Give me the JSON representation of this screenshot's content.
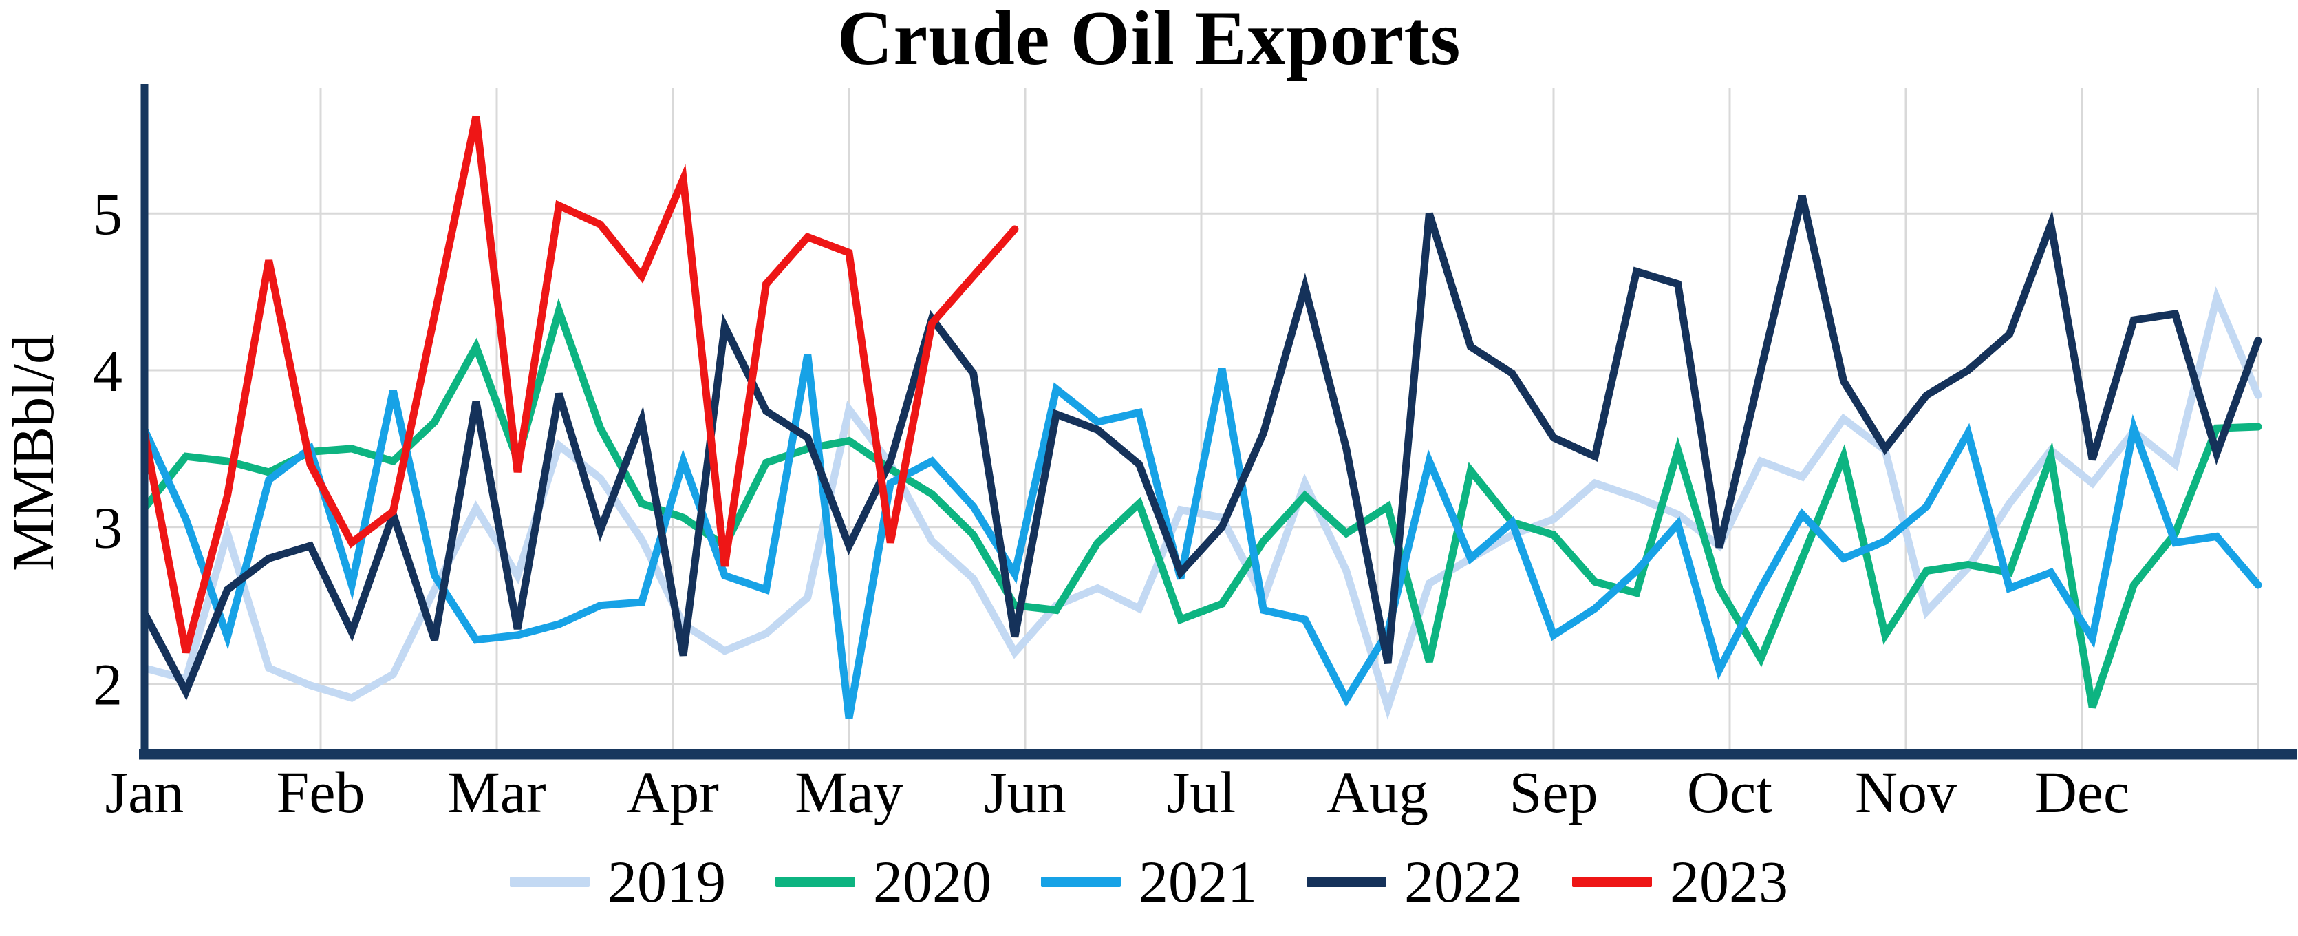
{
  "title": "Crude Oil Exports",
  "y_axis_label": "MMBbl/d",
  "colors": {
    "axis": "#17375e",
    "grid": "#d9d9d9",
    "text": "#000000",
    "background": "#ffffff"
  },
  "chart_data": {
    "type": "line",
    "title": "Crude Oil Exports",
    "xlabel": "",
    "ylabel": "MMBbl/d",
    "x_unit": "weekly",
    "points_per_year": 52,
    "x_tick_labels": [
      "Jan",
      "Feb",
      "Mar",
      "Apr",
      "May",
      "Jun",
      "Jul",
      "Aug",
      "Sep",
      "Oct",
      "Nov",
      "Dec"
    ],
    "y_ticks": [
      5,
      4,
      3,
      2
    ],
    "ylim": [
      1.55,
      5.8
    ],
    "grid": true,
    "legend_position": "bottom",
    "series": [
      {
        "name": "2019",
        "color": "#c3d9f3",
        "values": [
          2.1,
          2.03,
          2.96,
          2.1,
          1.99,
          1.91,
          2.06,
          2.6,
          3.12,
          2.69,
          3.52,
          3.31,
          2.92,
          2.38,
          2.21,
          2.32,
          2.55,
          3.75,
          3.4,
          2.91,
          2.67,
          2.2,
          2.5,
          2.61,
          2.48,
          3.11,
          3.06,
          2.54,
          3.28,
          2.72,
          1.85,
          2.64,
          2.8,
          2.95,
          3.05,
          3.28,
          3.19,
          3.08,
          2.88,
          3.42,
          3.32,
          3.69,
          3.49,
          2.46,
          2.74,
          3.15,
          3.49,
          3.28,
          3.61,
          3.4,
          4.46,
          3.84
        ]
      },
      {
        "name": "2020",
        "color": "#0db481",
        "values": [
          3.12,
          3.45,
          3.42,
          3.35,
          3.48,
          3.5,
          3.42,
          3.67,
          4.15,
          3.43,
          4.38,
          3.63,
          3.15,
          3.06,
          2.88,
          3.41,
          3.5,
          3.55,
          3.37,
          3.21,
          2.95,
          2.5,
          2.47,
          2.9,
          3.15,
          2.41,
          2.51,
          2.91,
          3.2,
          2.96,
          3.13,
          2.14,
          3.36,
          3.03,
          2.95,
          2.65,
          2.58,
          3.49,
          2.61,
          2.16,
          2.8,
          3.45,
          2.31,
          2.72,
          2.76,
          2.71,
          3.45,
          1.85,
          2.63,
          2.96,
          3.63,
          3.64
        ]
      },
      {
        "name": "2021",
        "color": "#17a2e6",
        "values": [
          3.62,
          3.05,
          2.3,
          3.3,
          3.5,
          2.63,
          3.87,
          2.69,
          2.28,
          2.31,
          2.38,
          2.5,
          2.52,
          3.42,
          2.69,
          2.6,
          4.1,
          1.78,
          3.28,
          3.42,
          3.13,
          2.7,
          3.88,
          3.67,
          3.73,
          2.67,
          4.01,
          2.47,
          2.41,
          1.9,
          2.33,
          3.42,
          2.8,
          3.03,
          2.31,
          2.48,
          2.72,
          3.02,
          2.09,
          2.61,
          3.08,
          2.8,
          2.91,
          3.13,
          3.6,
          2.61,
          2.71,
          2.29,
          3.63,
          2.9,
          2.94,
          2.63
        ]
      },
      {
        "name": "2022",
        "color": "#15325a",
        "values": [
          2.45,
          1.95,
          2.6,
          2.8,
          2.88,
          2.33,
          3.08,
          2.28,
          3.8,
          2.35,
          3.85,
          2.98,
          3.68,
          2.18,
          4.28,
          3.74,
          3.57,
          2.88,
          3.42,
          4.33,
          3.98,
          2.3,
          3.72,
          3.62,
          3.4,
          2.71,
          3.0,
          3.6,
          4.53,
          3.5,
          2.13,
          5.0,
          4.15,
          3.98,
          3.57,
          3.45,
          4.63,
          4.55,
          2.87,
          4.0,
          5.11,
          3.93,
          3.5,
          3.84,
          4.0,
          4.23,
          4.93,
          3.43,
          4.32,
          4.36,
          3.47,
          4.19
        ]
      },
      {
        "name": "2023",
        "color": "#ee1616",
        "values": [
          3.6,
          2.2,
          3.2,
          4.7,
          3.4,
          2.9,
          3.1,
          4.35,
          5.62,
          3.35,
          5.05,
          4.93,
          4.6,
          5.22,
          2.75,
          4.55,
          4.85,
          4.75,
          2.9,
          4.3,
          4.6,
          4.9
        ]
      }
    ]
  }
}
